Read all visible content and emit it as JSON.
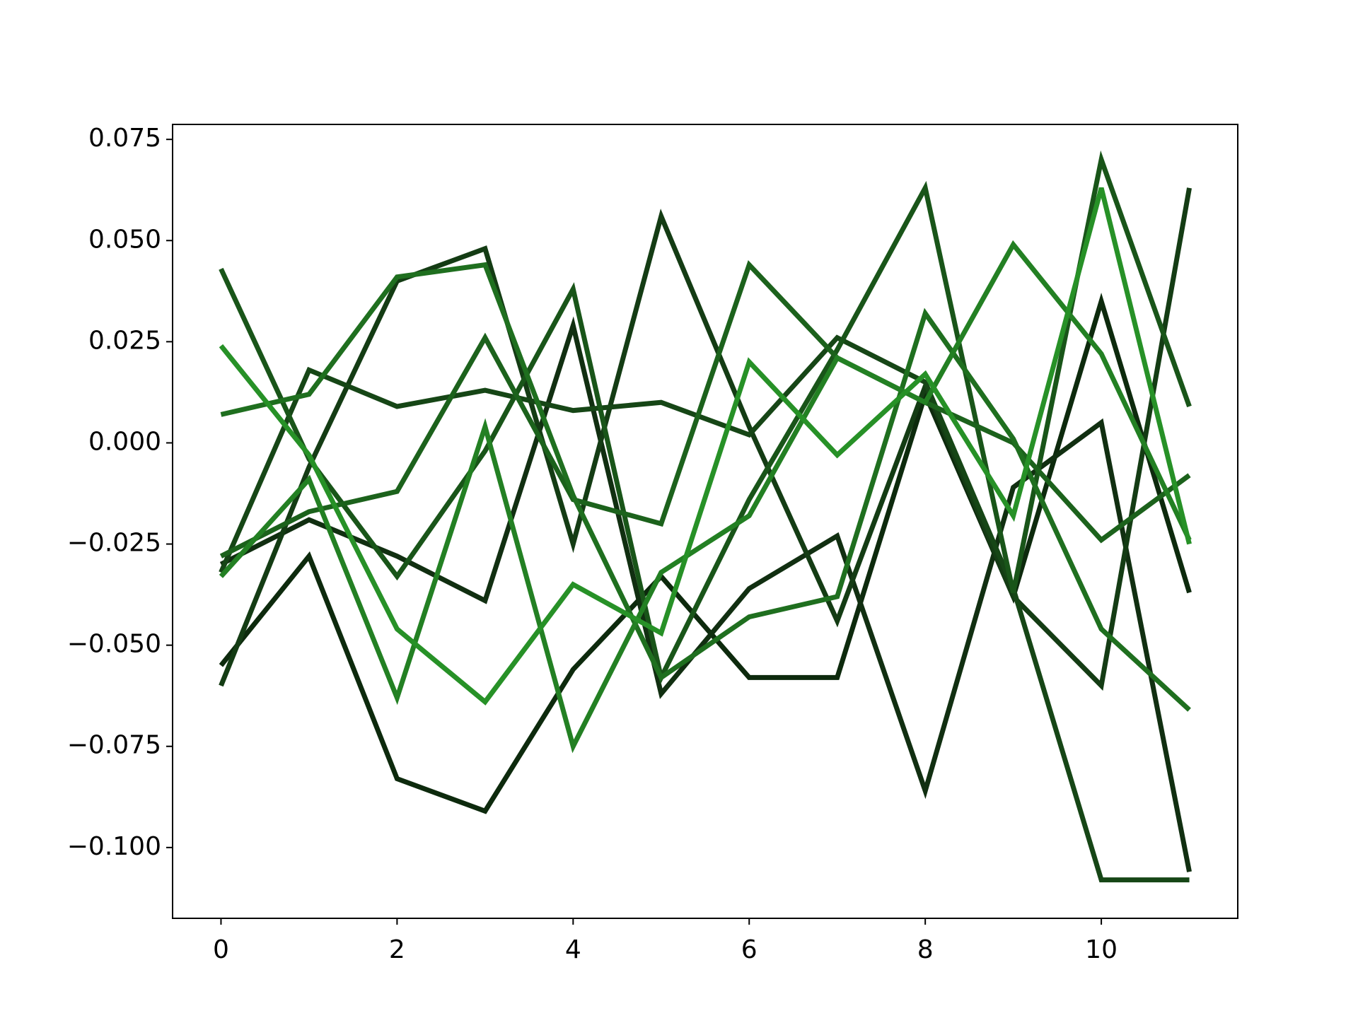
{
  "chart_data": {
    "type": "line",
    "x": [
      0,
      1,
      2,
      3,
      4,
      5,
      6,
      7,
      8,
      9,
      10,
      11
    ],
    "xlim": [
      -0.55,
      11.55
    ],
    "xticks": [
      0,
      2,
      4,
      6,
      8,
      10
    ],
    "ylim": [
      -0.1175,
      0.0787
    ],
    "yticks": [
      {
        "value": -0.1,
        "label": "−0.100"
      },
      {
        "value": -0.075,
        "label": "−0.075"
      },
      {
        "value": -0.05,
        "label": "−0.050"
      },
      {
        "value": -0.025,
        "label": "−0.025"
      },
      {
        "value": 0,
        "label": "0.000"
      },
      0.025,
      {
        "value": 0.05,
        "label": "0.050"
      },
      0.075
    ],
    "series": [
      {
        "color": "#0d2a0d",
        "values": [
          -0.055,
          -0.028,
          -0.083,
          -0.091,
          -0.056,
          -0.033,
          -0.058,
          -0.058,
          0.012,
          -0.038,
          0.035,
          -0.037
        ]
      },
      {
        "color": "#112f11",
        "values": [
          -0.03,
          -0.019,
          -0.028,
          -0.039,
          0.029,
          -0.062,
          -0.036,
          -0.023,
          -0.086,
          -0.011,
          0.005,
          -0.106
        ]
      },
      {
        "color": "#143c14",
        "values": [
          -0.06,
          -0.006,
          0.04,
          0.048,
          -0.025,
          0.056,
          0.004,
          -0.044,
          0.014,
          -0.038,
          -0.06,
          0.063
        ]
      },
      {
        "color": "#164616",
        "values": [
          -0.032,
          0.018,
          0.009,
          0.013,
          0.008,
          0.01,
          0.002,
          0.026,
          0.015,
          -0.036,
          -0.108,
          -0.108
        ]
      },
      {
        "color": "#195519",
        "values": [
          0.043,
          -0.004,
          -0.033,
          -0.002,
          0.038,
          -0.058,
          -0.014,
          0.023,
          0.063,
          -0.037,
          0.07,
          0.009
        ]
      },
      {
        "color": "#1c621c",
        "values": [
          -0.028,
          -0.017,
          -0.012,
          0.026,
          -0.014,
          -0.02,
          0.044,
          0.021,
          0.01,
          0.0,
          -0.024,
          -0.008
        ]
      },
      {
        "color": "#1f6f1f",
        "values": [
          0.007,
          0.012,
          0.041,
          0.044,
          -0.013,
          -0.058,
          -0.043,
          -0.038,
          0.032,
          0.001,
          -0.046,
          -0.066
        ]
      },
      {
        "color": "#238023",
        "values": [
          -0.033,
          -0.009,
          -0.063,
          0.004,
          -0.075,
          -0.032,
          -0.018,
          0.021,
          0.01,
          0.049,
          0.022,
          -0.024
        ]
      },
      {
        "color": "#279127",
        "values": [
          0.024,
          -0.003,
          -0.046,
          -0.064,
          -0.035,
          -0.047,
          0.02,
          -0.003,
          0.017,
          -0.018,
          0.063,
          -0.025
        ]
      }
    ]
  }
}
